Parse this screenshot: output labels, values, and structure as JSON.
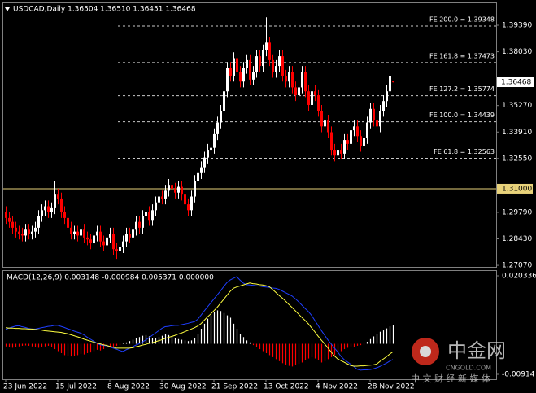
{
  "chart_data": [
    {
      "type": "candlestick",
      "title": "USDCAD,Daily  1.36504 1.36510 1.36451 1.36468",
      "up_color": "#ffffff",
      "down_color": "#ff0000",
      "categories": [
        "23 Jun 2022",
        null,
        null,
        null,
        null,
        null,
        null,
        null,
        null,
        null,
        null,
        null,
        null,
        null,
        null,
        null,
        "15 Jul 2022",
        null,
        null,
        null,
        null,
        null,
        null,
        null,
        null,
        null,
        null,
        null,
        null,
        null,
        null,
        null,
        "8 Aug 2022",
        null,
        null,
        null,
        null,
        null,
        null,
        null,
        null,
        null,
        null,
        null,
        null,
        null,
        null,
        null,
        "30 Aug 2022",
        null,
        null,
        null,
        null,
        null,
        null,
        null,
        null,
        null,
        null,
        null,
        null,
        null,
        null,
        null,
        "21 Sep 2022",
        null,
        null,
        null,
        null,
        null,
        null,
        null,
        null,
        null,
        null,
        null,
        null,
        null,
        null,
        null,
        "13 Oct 2022",
        null,
        null,
        null,
        null,
        null,
        null,
        null,
        null,
        null,
        null,
        null,
        null,
        null,
        null,
        null,
        "4 Nov 2022",
        null,
        null,
        null,
        null,
        null,
        null,
        null,
        null,
        null,
        null,
        null,
        null,
        null,
        null,
        null,
        "28 Nov 2022",
        null,
        null,
        null,
        null,
        null,
        null,
        null
      ],
      "open": [
        1.298,
        1.295,
        1.293,
        1.29,
        1.288,
        1.287,
        1.286,
        1.289,
        1.287,
        1.288,
        1.29,
        1.296,
        1.299,
        1.301,
        1.298,
        1.3,
        1.307,
        1.305,
        1.298,
        1.295,
        1.29,
        1.287,
        1.288,
        1.286,
        1.289,
        1.285,
        1.284,
        1.282,
        1.286,
        1.288,
        1.283,
        1.281,
        1.285,
        1.287,
        1.279,
        1.278,
        1.28,
        1.283,
        1.287,
        1.285,
        1.289,
        1.293,
        1.29,
        1.296,
        1.298,
        1.294,
        1.299,
        1.303,
        1.306,
        1.305,
        1.309,
        1.312,
        1.31,
        1.308,
        1.311,
        1.307,
        1.302,
        1.299,
        1.306,
        1.314,
        1.318,
        1.321,
        1.326,
        1.33,
        1.331,
        1.338,
        1.344,
        1.35,
        1.36,
        1.372,
        1.368,
        1.377,
        1.37,
        1.365,
        1.372,
        1.376,
        1.366,
        1.37,
        1.378,
        1.373,
        1.381,
        1.385,
        1.376,
        1.37,
        1.373,
        1.378,
        1.368,
        1.365,
        1.37,
        1.362,
        1.358,
        1.362,
        1.37,
        1.36,
        1.353,
        1.36,
        1.358,
        1.35,
        1.342,
        1.345,
        1.339,
        1.33,
        1.327,
        1.33,
        1.328,
        1.335,
        1.333,
        1.34,
        1.342,
        1.337,
        1.332,
        1.336,
        1.344,
        1.351,
        1.345,
        1.342,
        1.35,
        1.355,
        1.36,
        1.36504
      ],
      "high": [
        1.301,
        1.298,
        1.296,
        1.293,
        1.291,
        1.29,
        1.292,
        1.292,
        1.291,
        1.293,
        1.299,
        1.302,
        1.304,
        1.304,
        1.303,
        1.314,
        1.31,
        1.308,
        1.301,
        1.298,
        1.293,
        1.291,
        1.291,
        1.292,
        1.292,
        1.288,
        1.287,
        1.289,
        1.291,
        1.291,
        1.286,
        1.288,
        1.29,
        1.29,
        1.282,
        1.283,
        1.286,
        1.29,
        1.29,
        1.292,
        1.296,
        1.296,
        1.299,
        1.301,
        1.301,
        1.302,
        1.306,
        1.309,
        1.309,
        1.312,
        1.315,
        1.315,
        1.313,
        1.314,
        1.314,
        1.31,
        1.305,
        1.309,
        1.317,
        1.321,
        1.324,
        1.329,
        1.333,
        1.334,
        1.341,
        1.347,
        1.353,
        1.363,
        1.375,
        1.375,
        1.38,
        1.38,
        1.373,
        1.375,
        1.379,
        1.379,
        1.373,
        1.381,
        1.381,
        1.384,
        1.398,
        1.388,
        1.379,
        1.376,
        1.381,
        1.381,
        1.371,
        1.373,
        1.373,
        1.365,
        1.365,
        1.373,
        1.373,
        1.363,
        1.363,
        1.363,
        1.361,
        1.353,
        1.348,
        1.348,
        1.342,
        1.333,
        1.333,
        1.333,
        1.338,
        1.338,
        1.343,
        1.345,
        1.345,
        1.34,
        1.339,
        1.347,
        1.354,
        1.354,
        1.348,
        1.353,
        1.358,
        1.363,
        1.371,
        1.3651
      ],
      "low": [
        1.292,
        1.29,
        1.287,
        1.285,
        1.284,
        1.283,
        1.283,
        1.284,
        1.284,
        1.285,
        1.287,
        1.293,
        1.296,
        1.295,
        1.295,
        1.297,
        1.302,
        1.295,
        1.292,
        1.287,
        1.284,
        1.284,
        1.283,
        1.283,
        1.282,
        1.281,
        1.279,
        1.279,
        1.283,
        1.28,
        1.278,
        1.278,
        1.282,
        1.276,
        1.274,
        1.275,
        1.277,
        1.28,
        1.282,
        1.282,
        1.286,
        1.287,
        1.287,
        1.293,
        1.291,
        1.291,
        1.296,
        1.3,
        1.302,
        1.302,
        1.306,
        1.307,
        1.305,
        1.305,
        1.304,
        1.299,
        1.296,
        1.296,
        1.303,
        1.311,
        1.315,
        1.318,
        1.323,
        1.327,
        1.328,
        1.335,
        1.341,
        1.347,
        1.357,
        1.365,
        1.365,
        1.367,
        1.362,
        1.362,
        1.369,
        1.363,
        1.363,
        1.367,
        1.37,
        1.37,
        1.378,
        1.373,
        1.367,
        1.367,
        1.37,
        1.365,
        1.362,
        1.362,
        1.359,
        1.355,
        1.355,
        1.359,
        1.357,
        1.35,
        1.35,
        1.355,
        1.347,
        1.339,
        1.339,
        1.336,
        1.327,
        1.324,
        1.323,
        1.325,
        1.325,
        1.33,
        1.33,
        1.337,
        1.334,
        1.329,
        1.329,
        1.333,
        1.341,
        1.342,
        1.339,
        1.339,
        1.347,
        1.352,
        1.357,
        1.36451
      ],
      "close": [
        1.295,
        1.293,
        1.29,
        1.288,
        1.287,
        1.286,
        1.289,
        1.287,
        1.288,
        1.29,
        1.296,
        1.299,
        1.301,
        1.298,
        1.3,
        1.307,
        1.305,
        1.298,
        1.295,
        1.29,
        1.287,
        1.288,
        1.286,
        1.289,
        1.285,
        1.284,
        1.282,
        1.286,
        1.288,
        1.283,
        1.281,
        1.285,
        1.287,
        1.279,
        1.278,
        1.28,
        1.283,
        1.287,
        1.285,
        1.289,
        1.293,
        1.29,
        1.296,
        1.298,
        1.294,
        1.299,
        1.303,
        1.306,
        1.305,
        1.309,
        1.312,
        1.31,
        1.308,
        1.311,
        1.307,
        1.302,
        1.299,
        1.306,
        1.314,
        1.318,
        1.321,
        1.326,
        1.33,
        1.331,
        1.338,
        1.344,
        1.35,
        1.36,
        1.372,
        1.368,
        1.377,
        1.37,
        1.365,
        1.372,
        1.376,
        1.366,
        1.37,
        1.378,
        1.373,
        1.381,
        1.385,
        1.376,
        1.37,
        1.373,
        1.378,
        1.368,
        1.365,
        1.37,
        1.362,
        1.358,
        1.362,
        1.37,
        1.36,
        1.353,
        1.36,
        1.358,
        1.35,
        1.342,
        1.345,
        1.339,
        1.33,
        1.327,
        1.33,
        1.328,
        1.335,
        1.333,
        1.34,
        1.342,
        1.337,
        1.332,
        1.336,
        1.344,
        1.351,
        1.345,
        1.342,
        1.35,
        1.355,
        1.36,
        1.368,
        1.36468
      ],
      "ylim": [
        1.2699,
        1.4056
      ],
      "yticks": [
        {
          "value": 1.3939,
          "label": "1.39390"
        },
        {
          "value": 1.3803,
          "label": "1.38030"
        },
        {
          "value": 1.3527,
          "label": "1.35270"
        },
        {
          "value": 1.3391,
          "label": "1.33910"
        },
        {
          "value": 1.3255,
          "label": "1.32550"
        },
        {
          "value": 1.2979,
          "label": "1.29790"
        },
        {
          "value": 1.2843,
          "label": "1.28430"
        },
        {
          "value": 1.2707,
          "label": "1.27070"
        }
      ],
      "fib_levels": [
        {
          "value": 1.39348,
          "label": "FE 200.0 = 1.39348"
        },
        {
          "value": 1.37473,
          "label": "FE 161.8 = 1.37473"
        },
        {
          "value": 1.35774,
          "label": "FE 127.2 = 1.35774"
        },
        {
          "value": 1.34439,
          "label": "FE 100.0 = 1.34439"
        },
        {
          "value": 1.32563,
          "label": "FE 61.8 = 1.32563"
        }
      ],
      "level_line": {
        "value": 1.31,
        "label": "1.31000",
        "color": "#e8d27a"
      },
      "price_line": {
        "value": 1.36468,
        "label": "1.36468"
      }
    },
    {
      "type": "macd",
      "title": "MACD(12,26,9) 0.003148 -0.000984 0.005371 0.000000",
      "ylim": [
        -0.0106,
        0.0218
      ],
      "yticks": [
        0.020336,
        -0.00914
      ],
      "histogram": {
        "up_color": "#ffffff",
        "down_color": "#ff0000",
        "values": [
          -0.0008,
          -0.001,
          -0.0012,
          -0.001,
          -0.0008,
          -0.0006,
          -0.0005,
          -0.0006,
          -0.0008,
          -0.001,
          -0.0012,
          -0.001,
          -0.0008,
          -0.0006,
          -0.001,
          -0.0016,
          -0.0022,
          -0.0028,
          -0.0034,
          -0.0036,
          -0.0038,
          -0.0036,
          -0.0034,
          -0.003,
          -0.0032,
          -0.0028,
          -0.0026,
          -0.0022,
          -0.0018,
          -0.002,
          -0.0016,
          -0.0012,
          -0.0008,
          -0.001,
          -0.0006,
          -0.0004,
          0.0002,
          0.0004,
          0.0008,
          0.0012,
          0.0016,
          0.002,
          0.0024,
          0.0026,
          0.0022,
          0.0018,
          0.0016,
          0.002,
          0.0024,
          0.0028,
          0.0026,
          0.0022,
          0.0018,
          0.0014,
          0.0012,
          0.001,
          0.0008,
          0.001,
          0.0018,
          0.003,
          0.0045,
          0.006,
          0.0075,
          0.0085,
          0.0095,
          0.01,
          0.0098,
          0.0092,
          0.0085,
          0.0078,
          0.006,
          0.0045,
          0.003,
          0.002,
          0.001,
          0.0004,
          -0.0004,
          -0.001,
          -0.0016,
          -0.0022,
          -0.0028,
          -0.0034,
          -0.004,
          -0.0046,
          -0.0052,
          -0.0058,
          -0.0062,
          -0.0066,
          -0.0068,
          -0.0064,
          -0.006,
          -0.0056,
          -0.005,
          -0.0044,
          -0.004,
          -0.0044,
          -0.005,
          -0.0056,
          -0.0052,
          -0.0046,
          -0.004,
          -0.0034,
          -0.0028,
          -0.0022,
          -0.0016,
          -0.0012,
          -0.0008,
          -0.001,
          -0.0006,
          -0.0004,
          -0.0002,
          0.0006,
          0.0014,
          0.0022,
          0.003,
          0.0036,
          0.004,
          0.0046,
          0.0052,
          0.0055
        ]
      },
      "series": [
        {
          "color": "#1f3fff",
          "values": [
            0.0043,
            0.0047,
            0.005,
            0.0053,
            0.0054,
            0.0051,
            0.0049,
            0.0046,
            0.0044,
            0.0044,
            0.0046,
            0.0048,
            0.005,
            0.0052,
            0.0053,
            0.0055,
            0.0055,
            0.0052,
            0.0049,
            0.0045,
            0.0042,
            0.0038,
            0.0035,
            0.0032,
            0.0027,
            0.002,
            0.0014,
            0.0008,
            0.0002,
            -0.0003,
            -0.0005,
            -0.0006,
            -0.001,
            -0.0013,
            -0.0016,
            -0.002,
            -0.0023,
            -0.0018,
            -0.0014,
            -0.0009,
            -0.0004,
            0,
            0.0005,
            0.0011,
            0.0018,
            0.0025,
            0.0032,
            0.0039,
            0.0046,
            0.0051,
            0.0052,
            0.0054,
            0.0055,
            0.0055,
            0.0057,
            0.0059,
            0.0061,
            0.0064,
            0.0066,
            0.0073,
            0.0085,
            0.0098,
            0.011,
            0.0122,
            0.0134,
            0.0146,
            0.0158,
            0.0171,
            0.0183,
            0.0191,
            0.0196,
            0.0201,
            0.0191,
            0.0182,
            0.0177,
            0.0176,
            0.0175,
            0.0174,
            0.0173,
            0.0171,
            0.017,
            0.0169,
            0.0167,
            0.0166,
            0.0163,
            0.0158,
            0.0153,
            0.0148,
            0.0143,
            0.0135,
            0.0126,
            0.0116,
            0.0106,
            0.0097,
            0.0085,
            0.007,
            0.0055,
            0.004,
            0.0026,
            0.0012,
            0,
            -0.0012,
            -0.0024,
            -0.0037,
            -0.0047,
            -0.0054,
            -0.0061,
            -0.0068,
            -0.0076,
            -0.0079,
            -0.0078,
            -0.0078,
            -0.0077,
            -0.0075,
            -0.0072,
            -0.0068,
            -0.0063,
            -0.0058,
            -0.0052,
            -0.0047
          ]
        },
        {
          "color": "#ffff40",
          "values": [
            0.0048,
            0.0047,
            0.0047,
            0.0046,
            0.0046,
            0.0045,
            0.0045,
            0.0044,
            0.0044,
            0.0043,
            0.0042,
            0.0041,
            0.0039,
            0.0038,
            0.0037,
            0.0036,
            0.0035,
            0.0034,
            0.0032,
            0.003,
            0.0027,
            0.0024,
            0.0021,
            0.0018,
            0.0014,
            0.0011,
            0.0008,
            0.0005,
            0.0002,
            0,
            -0.0003,
            -0.0005,
            -0.0008,
            -0.001,
            -0.0013,
            -0.0013,
            -0.0013,
            -0.0013,
            -0.0013,
            -0.0012,
            -0.0009,
            -0.0007,
            -0.0004,
            -0.0002,
            0.0001,
            0.0003,
            0.0006,
            0.0009,
            0.0012,
            0.0016,
            0.0019,
            0.0022,
            0.0025,
            0.0029,
            0.0032,
            0.0036,
            0.004,
            0.0044,
            0.0048,
            0.0053,
            0.006,
            0.007,
            0.008,
            0.0089,
            0.0099,
            0.0109,
            0.0121,
            0.0133,
            0.0145,
            0.0157,
            0.0166,
            0.017,
            0.0173,
            0.0176,
            0.0179,
            0.0182,
            0.018,
            0.0179,
            0.0177,
            0.0176,
            0.0174,
            0.0171,
            0.0163,
            0.0154,
            0.0145,
            0.0137,
            0.0128,
            0.0118,
            0.0109,
            0.0099,
            0.0089,
            0.0079,
            0.007,
            0.006,
            0.0048,
            0.0036,
            0.0023,
            0.0011,
            0,
            -0.0012,
            -0.0024,
            -0.0036,
            -0.0045,
            -0.005,
            -0.0055,
            -0.006,
            -0.0065,
            -0.0067,
            -0.0067,
            -0.0066,
            -0.0066,
            -0.0065,
            -0.0064,
            -0.0063,
            -0.0061,
            -0.0053,
            -0.0046,
            -0.0039,
            -0.0031,
            -0.0024
          ]
        }
      ]
    }
  ],
  "watermark": {
    "logo": "中金网",
    "site": "CNGOLD.COM",
    "slogan": "中 文 财 经 新 媒 体"
  }
}
